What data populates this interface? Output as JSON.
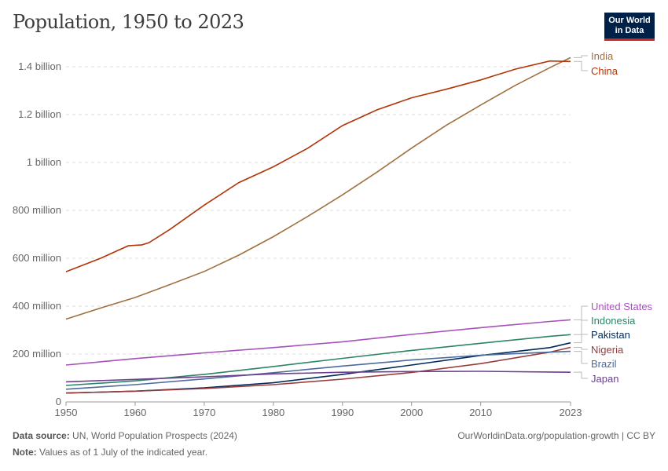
{
  "logo": {
    "line1": "Our World",
    "line2": "in Data",
    "bg": "#002147",
    "accent": "#ce261e"
  },
  "footer": {
    "source_label": "Data source:",
    "source": "UN, World Population Prospects (2024)",
    "note_label": "Note:",
    "note": "Values as of 1 July of the indicated year.",
    "credit": "OurWorldinData.org/population-growth | CC BY"
  },
  "chart_data": {
    "type": "line",
    "title": "Population, 1950 to 2023",
    "xlim": [
      1950,
      2023
    ],
    "ylim": [
      0,
      1400000000
    ],
    "grid": true,
    "legend": "right (labels at line ends)",
    "x_ticks": [
      1950,
      1960,
      1970,
      1980,
      1990,
      2000,
      2010,
      2023
    ],
    "y_ticks": [
      {
        "value": 0,
        "label": "0"
      },
      {
        "value": 200000000,
        "label": "200 million"
      },
      {
        "value": 400000000,
        "label": "400 million"
      },
      {
        "value": 600000000,
        "label": "600 million"
      },
      {
        "value": 800000000,
        "label": "800 million"
      },
      {
        "value": 1000000000,
        "label": "1 billion"
      },
      {
        "value": 1200000000,
        "label": "1.2 billion"
      },
      {
        "value": 1400000000,
        "label": "1.4 billion"
      }
    ],
    "series_unit": "millions",
    "series": [
      {
        "name": "India",
        "color": "#a2703f",
        "x": [
          1950,
          1955,
          1960,
          1965,
          1970,
          1975,
          1980,
          1985,
          1990,
          1995,
          2000,
          2005,
          2010,
          2015,
          2020,
          2023
        ],
        "y": [
          346,
          392,
          436,
          490,
          545,
          613,
          690,
          775,
          865,
          960,
          1060,
          1155,
          1240,
          1322,
          1396,
          1438
        ]
      },
      {
        "name": "China",
        "color": "#b13507",
        "x": [
          1950,
          1955,
          1959,
          1961,
          1962,
          1965,
          1970,
          1975,
          1980,
          1985,
          1990,
          1995,
          2000,
          2005,
          2010,
          2015,
          2020,
          2023
        ],
        "y": [
          544,
          600,
          652,
          656,
          665,
          720,
          822,
          916,
          982,
          1060,
          1154,
          1220,
          1270,
          1306,
          1345,
          1390,
          1424,
          1422
        ]
      },
      {
        "name": "United States",
        "color": "#a652ba",
        "x": [
          1950,
          1960,
          1970,
          1980,
          1990,
          2000,
          2010,
          2020,
          2023
        ],
        "y": [
          154,
          181,
          205,
          227,
          251,
          282,
          310,
          336,
          343
        ]
      },
      {
        "name": "Indonesia",
        "color": "#2c8465",
        "x": [
          1950,
          1960,
          1970,
          1980,
          1990,
          2000,
          2010,
          2020,
          2023
        ],
        "y": [
          69,
          88,
          115,
          148,
          182,
          215,
          245,
          274,
          281
        ]
      },
      {
        "name": "Pakistan",
        "color": "#00295b",
        "x": [
          1950,
          1960,
          1970,
          1980,
          1990,
          2000,
          2010,
          2020,
          2023
        ],
        "y": [
          37,
          45,
          59,
          80,
          115,
          154,
          194,
          227,
          247
        ]
      },
      {
        "name": "Nigeria",
        "color": "#9a3b3b",
        "x": [
          1950,
          1960,
          1970,
          1980,
          1990,
          2000,
          2010,
          2020,
          2023
        ],
        "y": [
          37,
          45,
          56,
          72,
          95,
          123,
          160,
          208,
          228
        ]
      },
      {
        "name": "Brazil",
        "color": "#4c6a9c",
        "x": [
          1950,
          1960,
          1970,
          1980,
          1990,
          2000,
          2010,
          2020,
          2023
        ],
        "y": [
          53,
          72,
          96,
          122,
          150,
          175,
          195,
          208,
          211
        ]
      },
      {
        "name": "Japan",
        "color": "#6d3e91",
        "x": [
          1950,
          1960,
          1970,
          1980,
          1990,
          2000,
          2010,
          2020,
          2023
        ],
        "y": [
          84,
          94,
          105,
          117,
          124,
          127,
          128,
          125,
          124
        ]
      }
    ]
  }
}
